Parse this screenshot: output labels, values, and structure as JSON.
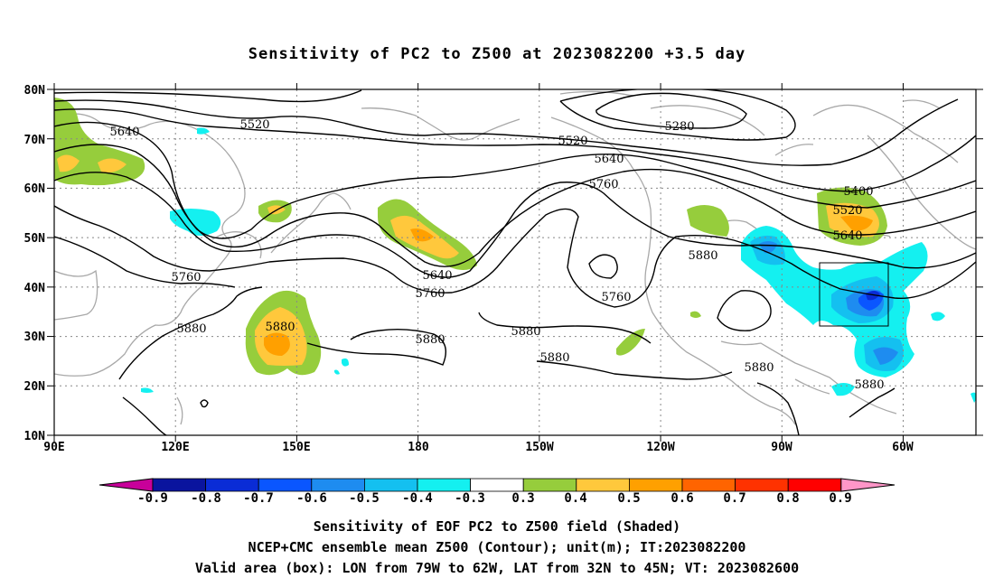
{
  "title": "Sensitivity of PC2 to Z500 at 2023082200 +3.5 day",
  "lat_labels": [
    "80N",
    "70N",
    "60N",
    "50N",
    "40N",
    "30N",
    "20N",
    "10N"
  ],
  "lon_labels": [
    "90E",
    "120E",
    "150E",
    "180",
    "150W",
    "120W",
    "90W",
    "60W"
  ],
  "contour_labels": [
    "5640",
    "5520",
    "5280",
    "5520",
    "5640",
    "5760",
    "5400",
    "5520",
    "5640",
    "5760",
    "5880",
    "5640",
    "5760",
    "5760",
    "5880",
    "5880",
    "5880",
    "5880",
    "5880",
    "5880",
    "5880"
  ],
  "colorbar": {
    "labels": [
      "-0.9",
      "-0.8",
      "-0.7",
      "-0.6",
      "-0.5",
      "-0.4",
      "-0.3",
      "0.3",
      "0.4",
      "0.5",
      "0.6",
      "0.7",
      "0.8",
      "0.9"
    ],
    "colors": [
      "#c8009a",
      "#0a149e",
      "#0a2cd6",
      "#0a56ff",
      "#1e8cf0",
      "#14c0f0",
      "#14f0f0",
      "#ffffff",
      "#96cd3c",
      "#ffc83c",
      "#ffa000",
      "#ff6400",
      "#ff3200",
      "#ff0000",
      "#ff96c8"
    ]
  },
  "captions": [
    "Sensitivity of EOF PC2 to Z500 field (Shaded)",
    "NCEP+CMC ensemble mean Z500 (Contour); unit(m); IT:2023082200",
    "Valid area (box): LON from 79W to 62W, LAT from 32N to 45N; VT: 2023082600"
  ]
}
